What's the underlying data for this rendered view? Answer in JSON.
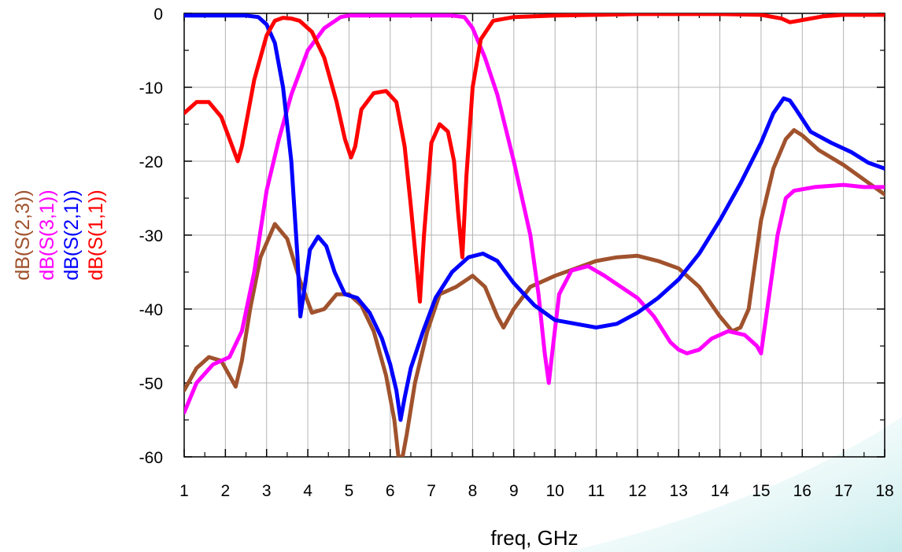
{
  "chart_data": {
    "type": "line",
    "xlabel": "freq, GHz",
    "ylabel": "",
    "xlim": [
      1,
      18
    ],
    "ylim": [
      -60,
      0
    ],
    "x_ticks": [
      "1",
      "2",
      "3",
      "4",
      "5",
      "6",
      "7",
      "8",
      "9",
      "10",
      "11",
      "12",
      "13",
      "14",
      "15",
      "16",
      "17",
      "18"
    ],
    "y_ticks": [
      "0",
      "-10",
      "-20",
      "-30",
      "-40",
      "-50",
      "-60"
    ],
    "grid": true,
    "legend": "left, rotated vertical",
    "series": [
      {
        "name": "dB(S(2,3))",
        "color": "#A0522D",
        "x": [
          1.0,
          1.3,
          1.6,
          1.9,
          2.1,
          2.25,
          2.4,
          2.6,
          2.85,
          3.2,
          3.5,
          3.8,
          4.1,
          4.4,
          4.7,
          5.0,
          5.3,
          5.6,
          5.9,
          6.1,
          6.2,
          6.3,
          6.4,
          6.6,
          6.9,
          7.2,
          7.6,
          8.0,
          8.3,
          8.6,
          8.75,
          9.0,
          9.4,
          10.0,
          10.5,
          11.0,
          11.5,
          12.0,
          12.5,
          13.0,
          13.5,
          14.0,
          14.3,
          14.5,
          14.7,
          15.0,
          15.3,
          15.6,
          15.8,
          16.0,
          16.4,
          17.0,
          17.5,
          18.0
        ],
        "values": [
          -51,
          -48,
          -46.5,
          -47,
          -49,
          -50.5,
          -47,
          -40,
          -33,
          -28.5,
          -30.5,
          -36,
          -40.5,
          -40,
          -38,
          -38,
          -39.5,
          -43,
          -49,
          -55,
          -60,
          -60,
          -57,
          -50,
          -43,
          -38,
          -37,
          -35.5,
          -37,
          -41,
          -42.5,
          -40,
          -37,
          -35.5,
          -34.5,
          -33.5,
          -33,
          -32.8,
          -33.5,
          -34.5,
          -37,
          -41,
          -43,
          -42.5,
          -40,
          -28,
          -21,
          -17,
          -15.8,
          -16.5,
          -18.5,
          -20.5,
          -22.5,
          -24.5
        ]
      },
      {
        "name": "dB(S(3,1))",
        "color": "#FF00FF",
        "x": [
          1.0,
          1.3,
          1.7,
          2.1,
          2.4,
          2.7,
          3.0,
          3.3,
          3.6,
          4.0,
          4.4,
          4.8,
          5.0,
          5.5,
          6.0,
          6.5,
          7.0,
          7.5,
          7.8,
          8.0,
          8.3,
          8.6,
          9.0,
          9.4,
          9.6,
          9.75,
          9.85,
          9.95,
          10.1,
          10.4,
          10.8,
          11.2,
          11.6,
          12.0,
          12.4,
          12.8,
          13.0,
          13.2,
          13.5,
          13.8,
          14.2,
          14.6,
          14.9,
          15.0,
          15.2,
          15.4,
          15.6,
          15.8,
          16.3,
          17.0,
          17.5,
          18.0
        ],
        "values": [
          -54,
          -50,
          -47.5,
          -46.5,
          -43,
          -35,
          -24,
          -17,
          -11,
          -5,
          -2,
          -0.5,
          -0.3,
          -0.3,
          -0.3,
          -0.3,
          -0.3,
          -0.3,
          -0.5,
          -2,
          -6,
          -11,
          -20,
          -30,
          -38,
          -46,
          -50,
          -45,
          -38,
          -34.8,
          -34.2,
          -35.5,
          -37,
          -38.5,
          -41,
          -44.5,
          -45.5,
          -46,
          -45.5,
          -44,
          -43,
          -43.5,
          -45,
          -46,
          -38,
          -30,
          -25,
          -24,
          -23.5,
          -23.2,
          -23.5,
          -23.5
        ]
      },
      {
        "name": "dB(S(2,1))",
        "color": "#0000FF",
        "x": [
          1.0,
          1.5,
          2.0,
          2.5,
          2.8,
          3.0,
          3.2,
          3.4,
          3.6,
          3.75,
          3.82,
          3.9,
          4.05,
          4.25,
          4.45,
          4.65,
          4.9,
          5.2,
          5.5,
          5.8,
          6.0,
          6.15,
          6.25,
          6.35,
          6.5,
          6.8,
          7.1,
          7.5,
          7.9,
          8.25,
          8.6,
          9.0,
          9.5,
          10.0,
          10.5,
          11.0,
          11.5,
          12.0,
          12.5,
          13.0,
          13.5,
          14.0,
          14.5,
          15.0,
          15.3,
          15.55,
          15.7,
          15.85,
          16.2,
          16.7,
          17.2,
          17.6,
          18.0
        ],
        "values": [
          -0.3,
          -0.3,
          -0.3,
          -0.3,
          -0.5,
          -1.5,
          -4,
          -10,
          -20,
          -33,
          -41,
          -38,
          -32,
          -30.2,
          -31.5,
          -35,
          -38,
          -38.5,
          -40.5,
          -44,
          -47.5,
          -51,
          -55,
          -52,
          -48,
          -43,
          -38.5,
          -35,
          -33,
          -32.5,
          -33.5,
          -36.5,
          -39.5,
          -41.5,
          -42,
          -42.5,
          -42,
          -40.5,
          -38.5,
          -36,
          -32.5,
          -28,
          -23,
          -17.5,
          -13.5,
          -11.5,
          -11.8,
          -13,
          -16,
          -17.5,
          -18.8,
          -20.2,
          -21
        ]
      },
      {
        "name": "dB(S(1,1))",
        "color": "#FF0000",
        "x": [
          1.0,
          1.3,
          1.6,
          1.9,
          2.1,
          2.3,
          2.4,
          2.7,
          3.0,
          3.2,
          3.4,
          3.6,
          3.8,
          4.1,
          4.4,
          4.7,
          4.9,
          5.05,
          5.15,
          5.3,
          5.6,
          5.9,
          6.15,
          6.35,
          6.5,
          6.62,
          6.72,
          6.82,
          7.0,
          7.2,
          7.4,
          7.55,
          7.65,
          7.75,
          7.85,
          8.0,
          8.2,
          8.5,
          9.0,
          10.0,
          11.0,
          12.0,
          13.0,
          14.0,
          15.0,
          15.5,
          15.7,
          16.0,
          16.5,
          17.0,
          18.0
        ],
        "values": [
          -13.5,
          -12,
          -12,
          -14,
          -17,
          -20,
          -18,
          -9,
          -3,
          -1,
          -0.6,
          -0.7,
          -1,
          -2.5,
          -6,
          -12,
          -17,
          -19.5,
          -18,
          -13,
          -10.8,
          -10.5,
          -12,
          -18,
          -26,
          -33,
          -39,
          -30,
          -17.5,
          -15,
          -16,
          -20,
          -27,
          -33,
          -22,
          -10,
          -3.5,
          -1,
          -0.5,
          -0.3,
          -0.2,
          -0.1,
          -0.1,
          -0.1,
          -0.2,
          -0.7,
          -1.2,
          -0.9,
          -0.4,
          -0.2,
          -0.2
        ]
      }
    ]
  }
}
